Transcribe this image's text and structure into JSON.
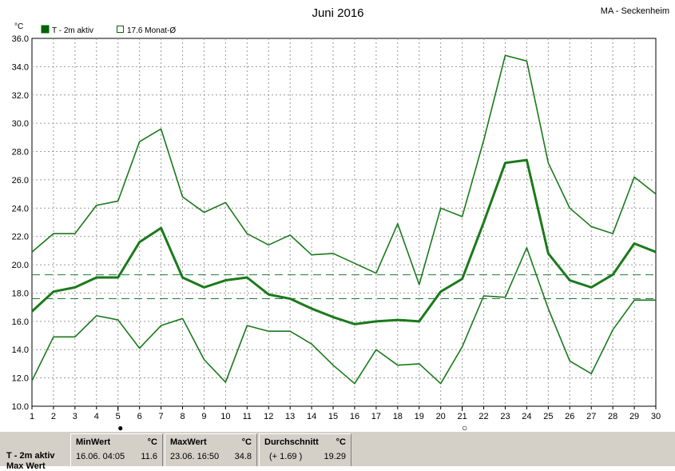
{
  "chart_data": {
    "type": "line",
    "title": "Juni 2016",
    "station": "MA - Seckenheim",
    "ylabel": "°C",
    "legend": [
      {
        "label": "T - 2m aktiv",
        "style": "filled",
        "color": "#006400"
      },
      {
        "label": "17.6 Monat-Ø",
        "style": "outline",
        "color": "#006400"
      }
    ],
    "x": [
      1,
      2,
      3,
      4,
      5,
      6,
      7,
      8,
      9,
      10,
      11,
      12,
      13,
      14,
      15,
      16,
      17,
      18,
      19,
      20,
      21,
      22,
      23,
      24,
      25,
      26,
      27,
      28,
      29,
      30
    ],
    "ylim": [
      10.0,
      36.0
    ],
    "yticks": [
      "10.0",
      "12.0",
      "14.0",
      "16.0",
      "18.0",
      "20.0",
      "22.0",
      "24.0",
      "26.0",
      "28.0",
      "30.0",
      "32.0",
      "34.0",
      "36.0"
    ],
    "grid": true,
    "series": [
      {
        "role": "max",
        "values": [
          20.9,
          22.2,
          22.2,
          24.2,
          24.5,
          28.7,
          29.6,
          24.8,
          23.7,
          24.4,
          22.2,
          21.4,
          22.1,
          20.7,
          20.8,
          20.1,
          19.4,
          22.9,
          18.6,
          24.0,
          23.4,
          28.8,
          34.8,
          34.4,
          27.2,
          24.0,
          22.7,
          22.2,
          26.2,
          25.0
        ]
      },
      {
        "role": "mean",
        "values": [
          16.7,
          18.1,
          18.4,
          19.1,
          19.1,
          21.6,
          22.6,
          19.1,
          18.4,
          18.9,
          19.1,
          17.9,
          17.6,
          16.9,
          16.3,
          15.8,
          16.0,
          16.1,
          16.0,
          18.1,
          19.0,
          23.0,
          27.2,
          27.4,
          20.8,
          18.9,
          18.4,
          19.3,
          21.5,
          20.9
        ]
      },
      {
        "role": "min",
        "values": [
          11.8,
          14.9,
          14.9,
          16.4,
          16.1,
          14.1,
          15.7,
          16.2,
          13.3,
          11.7,
          15.7,
          15.3,
          15.3,
          14.4,
          12.9,
          11.6,
          14.0,
          12.9,
          13.0,
          11.6,
          14.2,
          17.8,
          17.7,
          21.2,
          16.9,
          13.2,
          12.3,
          15.4,
          17.5,
          17.5
        ]
      }
    ],
    "reference_lines": [
      {
        "value": 19.29
      },
      {
        "value": 17.6
      }
    ],
    "moon_phases": [
      {
        "day": 5,
        "symbol": "●"
      },
      {
        "day": 21,
        "symbol": "○"
      }
    ]
  },
  "stats": {
    "label": "T - 2m aktiv",
    "label2": "Max Wert",
    "min": {
      "header": "MinWert",
      "unit": "°C",
      "date": "16.06.  04:05",
      "value": "11.6"
    },
    "max": {
      "header": "MaxWert",
      "unit": "°C",
      "date": "23.06.  16:50",
      "value": "34.8"
    },
    "avg": {
      "header": "Durchschnitt",
      "unit": "°C",
      "delta": "(+ 1.69 )",
      "value": "19.29"
    }
  }
}
